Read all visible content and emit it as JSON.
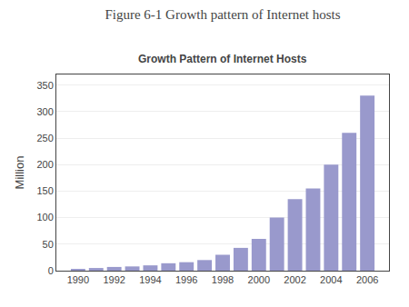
{
  "chart_data": {
    "type": "bar",
    "title": "Figure 6-1 Growth pattern of Internet hosts",
    "subtitle": "Growth Pattern of Internet Hosts",
    "ylabel": "Million",
    "x": [
      1990,
      1991,
      1992,
      1993,
      1994,
      1995,
      1996,
      1997,
      1998,
      1999,
      2000,
      2001,
      2002,
      2003,
      2004,
      2005,
      2006
    ],
    "values": [
      3,
      5,
      7,
      8,
      10,
      14,
      16,
      20,
      30,
      43,
      60,
      100,
      135,
      155,
      200,
      260,
      330
    ],
    "color": "#9999cc",
    "xlim": [
      1988.8,
      2007.2
    ],
    "xticks": [
      1990,
      1992,
      1994,
      1996,
      1998,
      2000,
      2002,
      2004,
      2006
    ],
    "ylim": [
      0,
      370
    ],
    "yticks": [
      0,
      50,
      100,
      150,
      200,
      250,
      300,
      350
    ],
    "grid": true
  }
}
